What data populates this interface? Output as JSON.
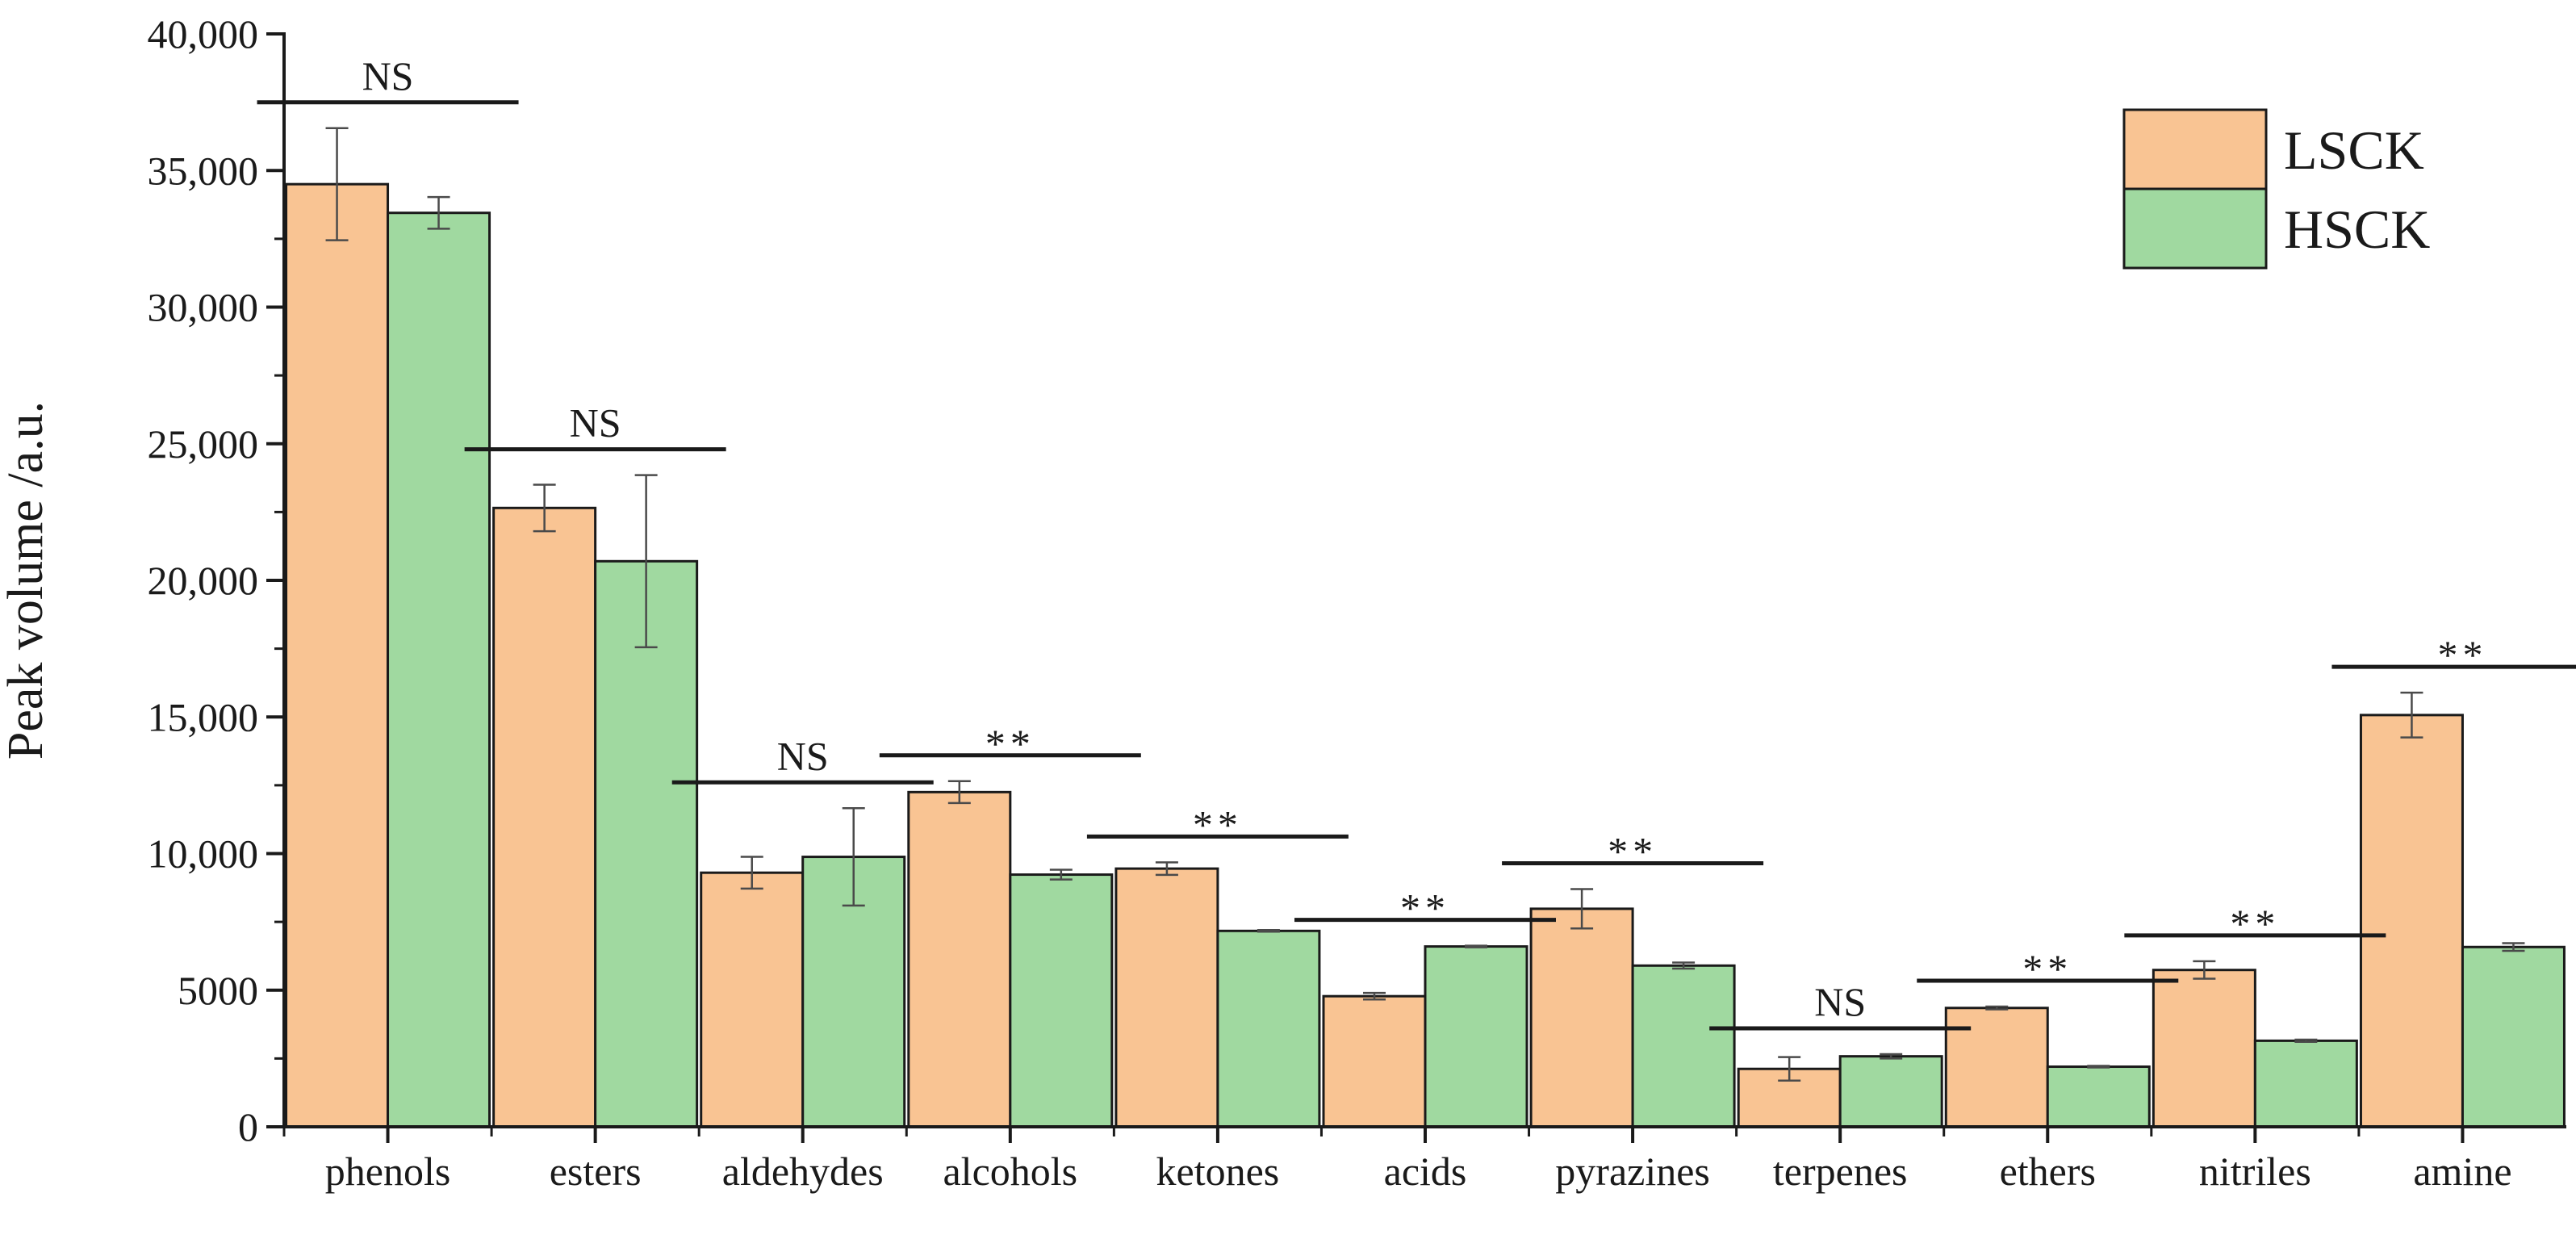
{
  "chart_data": {
    "type": "bar",
    "title": "",
    "xlabel": "",
    "ylabel": "Peak volume /a.u.",
    "ylim": [
      0,
      40000
    ],
    "yticks": [
      0,
      5000,
      10000,
      15000,
      20000,
      25000,
      30000,
      35000,
      40000
    ],
    "ytick_labels": [
      "0",
      "5000",
      "10,000",
      "15,000",
      "20,000",
      "25,000",
      "30,000",
      "35,000",
      "40,000"
    ],
    "categories": [
      "phenols",
      "esters",
      "aldehydes",
      "alcohols",
      "ketones",
      "acids",
      "pyrazines",
      "terpenes",
      "ethers",
      "nitriles",
      "amine"
    ],
    "series": [
      {
        "name": "LSCK",
        "color": "#f9c493",
        "values": [
          34500,
          22650,
          9300,
          12250,
          9450,
          4780,
          7980,
          2120,
          4350,
          5740,
          15070
        ],
        "errors": [
          2050,
          850,
          580,
          400,
          230,
          120,
          720,
          430,
          50,
          320,
          820
        ]
      },
      {
        "name": "HSCK",
        "color": "#a0d9a0",
        "values": [
          33450,
          20700,
          9880,
          9230,
          7170,
          6600,
          5900,
          2580,
          2200,
          3150,
          6580
        ],
        "errors": [
          580,
          3150,
          1780,
          180,
          30,
          30,
          110,
          80,
          30,
          40,
          140
        ]
      }
    ],
    "significance": [
      "NS",
      "NS",
      "NS",
      "**",
      "**",
      "**",
      "**",
      "NS",
      "**",
      "**",
      "**"
    ],
    "legend_position": "top-right",
    "grid": false
  }
}
